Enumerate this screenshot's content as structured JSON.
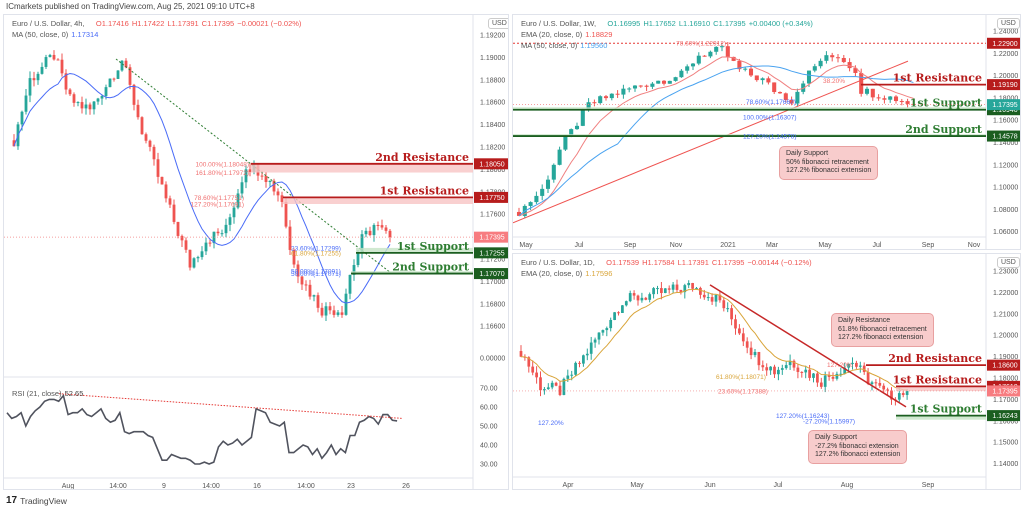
{
  "header": {
    "published": "ICmarkets published on TradingView.com, Aug 25, 2021 09:10 UTC+8"
  },
  "footer": {
    "brand": "TradingView"
  },
  "colors": {
    "up": "#26a69a",
    "down": "#ef5350",
    "resistance": "#b71c1c",
    "support": "#1b5e20",
    "current": "#f77c80",
    "ma_blue": "#4a6cf7",
    "ema_red": "#f08080",
    "ema_gold": "#d9a53a"
  },
  "h4": {
    "symbol": "Euro / U.S. Dollar, 4h,",
    "o": "O1.17416",
    "h": "H1.17422",
    "l": "L1.17391",
    "c": "C1.17395",
    "chg": "−0.00021 (−0.02%)",
    "ma_label": "MA (50, close, 0)",
    "ma_value": "1.17314",
    "currency": "USD",
    "rsi_label": "RSI (21, close)",
    "rsi_value": "52.65"
  },
  "wk": {
    "symbol": "Euro / U.S. Dollar, 1W,",
    "o": "O1.16995",
    "h": "H1.17652",
    "l": "L1.16910",
    "c": "C1.17395",
    "chg": "+0.00400 (+0.34%)",
    "ema_label": "EMA (20, close, 0)",
    "ema_value": "1.18829",
    "ma_label": "MA (50, close, 0)",
    "ma_value": "1.19560",
    "currency": "USD",
    "callout": [
      "Daily Support",
      "50% fibonacci retracement",
      "127.2% fibonacci extension"
    ]
  },
  "d1": {
    "symbol": "Euro / U.S. Dollar, 1D,",
    "o": "O1.17539",
    "h": "H1.17584",
    "l": "L1.17391",
    "c": "C1.17395",
    "chg": "−0.00144 (−0.12%)",
    "ema_label": "EMA (20, close, 0)",
    "ema_value": "1.17596",
    "currency": "USD",
    "callout_res": [
      "Daily Resistance",
      "61.8% fibonacci retracement",
      "127.2% fibonacci extension"
    ],
    "callout_sup": [
      "Daily Support",
      "-27.2% fibonacci extension",
      "127.2% fibonacci extension"
    ]
  },
  "chart_data": [
    {
      "id": "h4",
      "type": "candlestick",
      "title": "Euro / U.S. Dollar, 4h",
      "y_ticks": [
        "1.19200",
        "1.19000",
        "1.18800",
        "1.18600",
        "1.18400",
        "1.18200",
        "1.18000",
        "1.17800",
        "1.17600",
        "1.17200",
        "1.17000",
        "1.16800",
        "1.16600",
        "0.00000"
      ],
      "x_ticks": [
        "Aug",
        "14:00",
        "9",
        "14:00",
        "16",
        "14:00",
        "23",
        "26"
      ],
      "price_path": [
        [
          0,
          1.1826
        ],
        [
          4,
          1.188
        ],
        [
          10,
          1.1902
        ],
        [
          14,
          1.1862
        ],
        [
          19,
          1.1853
        ],
        [
          27,
          1.1898
        ],
        [
          32,
          1.1835
        ],
        [
          38,
          1.1773
        ],
        [
          44,
          1.1715
        ],
        [
          48,
          1.1737
        ],
        [
          53,
          1.1746
        ],
        [
          58,
          1.1804
        ],
        [
          62,
          1.1799
        ],
        [
          67,
          1.1773
        ],
        [
          69,
          1.1728
        ],
        [
          72,
          1.1701
        ],
        [
          77,
          1.1675
        ],
        [
          82,
          1.1675
        ],
        [
          84,
          1.1706
        ],
        [
          87,
          1.1737
        ],
        [
          90,
          1.175
        ],
        [
          94,
          1.17395
        ]
      ],
      "levels": [
        {
          "label": "2nd Resistance",
          "price": 1.1805,
          "tag": "1.18050",
          "kind": "resistance",
          "zone_to": 1.17972
        },
        {
          "label": "1st Resistance",
          "price": 1.1775,
          "tag": "1.17750",
          "kind": "resistance",
          "zone_to": 1.17691
        },
        {
          "label": "1st Support",
          "price": 1.17255,
          "tag": "1.17255",
          "kind": "support",
          "zone_to": 1.17299
        },
        {
          "label": "2nd Support",
          "price": 1.1707,
          "tag": "1.17070",
          "kind": "support",
          "zone_to": 1.17091
        }
      ],
      "current": {
        "price": 1.17395,
        "tag": "1.17395"
      },
      "fibs": [
        {
          "text": "100.00%(1.18048)",
          "price": 1.18048,
          "color": "#f07070"
        },
        {
          "text": "161.80%(1.17972)",
          "price": 1.17972,
          "color": "#f07070"
        },
        {
          "text": "78.60%(1.17751)",
          "price": 1.17751,
          "color": "#f07070"
        },
        {
          "text": "127.20%(1.17691)",
          "price": 1.17691,
          "color": "#f07070"
        },
        {
          "text": "23.60%(1.17299)",
          "price": 1.17299,
          "color": "#4a6cf7"
        },
        {
          "text": "61.80%(1.17255)",
          "price": 1.17255,
          "color": "#d9a53a"
        },
        {
          "text": "50.00%(1.17091)",
          "price": 1.17091,
          "color": "#4a6cf7"
        },
        {
          "text": "50.00%(1.17071)",
          "price": 1.17071,
          "color": "#4a6cf7"
        }
      ]
    },
    {
      "id": "rsi",
      "type": "line",
      "y_ticks": [
        "70.00",
        "60.00",
        "50.00",
        "40.00",
        "30.00"
      ],
      "values": [
        57,
        54,
        55,
        57,
        50,
        55,
        58,
        60,
        63,
        64,
        64,
        63,
        66,
        56,
        57,
        57,
        59,
        56,
        55,
        57,
        59,
        54,
        52,
        53,
        57,
        47,
        46,
        47,
        47,
        47,
        45,
        44,
        38,
        32,
        32,
        35,
        34,
        33,
        33,
        32,
        30,
        30,
        31,
        30,
        31,
        39,
        42,
        40,
        41,
        43,
        40,
        42,
        44,
        59,
        58,
        57,
        52,
        51,
        50,
        52,
        36,
        36,
        38,
        40,
        39,
        35,
        38,
        33,
        36,
        40,
        35,
        38,
        36,
        45,
        45,
        52,
        53,
        55,
        54,
        51,
        56,
        56,
        53,
        52.65
      ]
    },
    {
      "id": "wk",
      "type": "candlestick",
      "title": "Euro / U.S. Dollar, 1W",
      "y_ticks": [
        "1.24000",
        "1.22000",
        "1.20000",
        "1.18000",
        "1.16000",
        "1.14000",
        "1.12000",
        "1.10000",
        "1.08000",
        "1.06000"
      ],
      "x_ticks": [
        "May",
        "Jul",
        "Sep",
        "Nov",
        "2021",
        "Mar",
        "May",
        "Jul",
        "Sep",
        "Nov"
      ],
      "price_path": [
        [
          0,
          1.0777
        ],
        [
          4,
          1.0974
        ],
        [
          7,
          1.1333
        ],
        [
          12,
          1.1736
        ],
        [
          16,
          1.1826
        ],
        [
          21,
          1.1916
        ],
        [
          28,
          1.2005
        ],
        [
          31,
          1.2185
        ],
        [
          35,
          1.223
        ],
        [
          38,
          1.205
        ],
        [
          42,
          1.196
        ],
        [
          44,
          1.187
        ],
        [
          47,
          1.178
        ],
        [
          49,
          1.196
        ],
        [
          52,
          1.214
        ],
        [
          55,
          1.218
        ],
        [
          58,
          1.205
        ],
        [
          59,
          1.187
        ],
        [
          62,
          1.183
        ],
        [
          66,
          1.178
        ],
        [
          68,
          1.17395
        ]
      ],
      "levels": [
        {
          "label": "",
          "price": 1.229,
          "tag": "1.22900",
          "kind": "resistance-dotted"
        },
        {
          "label": "1st Resistance",
          "price": 1.1919,
          "tag": "1.19190",
          "kind": "resistance"
        },
        {
          "label": "1st Support",
          "price": 1.1694,
          "tag": "1.16940",
          "kind": "support",
          "zone_to": 1.1716
        },
        {
          "label": "2nd Support",
          "price": 1.14578,
          "tag": "1.14578",
          "kind": "support",
          "zone_to": 1.1475
        }
      ],
      "current": {
        "price": 1.17395,
        "tag": "1.17395"
      },
      "fibs": [
        {
          "text": "78.60%(1.22912)",
          "price": 1.22912,
          "color": "#f07070"
        },
        {
          "text": "38.20%",
          "price": 1.1955,
          "color": "#f07070"
        },
        {
          "text": "78.60%(1.17667)",
          "price": 1.17667,
          "color": "#4a6cf7"
        },
        {
          "text": "100.00%(1.16307)",
          "price": 1.16307,
          "color": "#4a6cf7"
        },
        {
          "text": "127.20%(1.14578)",
          "price": 1.14578,
          "color": "#4a6cf7"
        }
      ]
    },
    {
      "id": "d1",
      "type": "candlestick",
      "title": "Euro / U.S. Dollar, 1D",
      "y_ticks": [
        "1.23000",
        "1.22000",
        "1.21000",
        "1.20000",
        "1.19000",
        "1.18000",
        "1.17000",
        "1.16000",
        "1.15000",
        "1.14000"
      ],
      "x_ticks": [
        "Apr",
        "May",
        "Jun",
        "Jul",
        "Aug",
        "Sep"
      ],
      "price_path": [
        [
          0,
          1.1926
        ],
        [
          5,
          1.1763
        ],
        [
          10,
          1.174
        ],
        [
          26,
          1.216
        ],
        [
          44,
          1.223
        ],
        [
          51,
          1.216
        ],
        [
          56,
          1.202
        ],
        [
          60,
          1.1903
        ],
        [
          65,
          1.1833
        ],
        [
          69,
          1.188
        ],
        [
          77,
          1.1786
        ],
        [
          85,
          1.1879
        ],
        [
          88,
          1.1809
        ],
        [
          94,
          1.1716
        ],
        [
          99,
          1.17395
        ]
      ],
      "levels": [
        {
          "label": "2nd Resistance",
          "price": 1.186,
          "tag": "1.18600",
          "kind": "resistance"
        },
        {
          "label": "1st Resistance",
          "price": 1.1761,
          "tag": "1.17610",
          "kind": "resistance",
          "zone_to": 1.1739
        },
        {
          "label": "1st Support",
          "price": 1.16243,
          "tag": "1.16243",
          "kind": "support",
          "zone_to": 1.1605
        }
      ],
      "current": {
        "price": 1.17395,
        "tag": "1.17395"
      },
      "fibs": [
        {
          "text": "61.80%(1.18071)",
          "price": 1.18071,
          "color": "#d9a53a"
        },
        {
          "text": "23.60%(1.17388)",
          "price": 1.17388,
          "color": "#f07070"
        },
        {
          "text": "127.20%",
          "price": 1.1862,
          "color": "#f07070"
        },
        {
          "text": "127.20%(1.16243)",
          "price": 1.16243,
          "color": "#4a6cf7"
        },
        {
          "text": "-27.20%(1.15997)",
          "price": 1.15997,
          "color": "#4a6cf7"
        },
        {
          "text": "127.20%",
          "price": 1.1591,
          "color": "#4a6cf7"
        }
      ]
    }
  ]
}
